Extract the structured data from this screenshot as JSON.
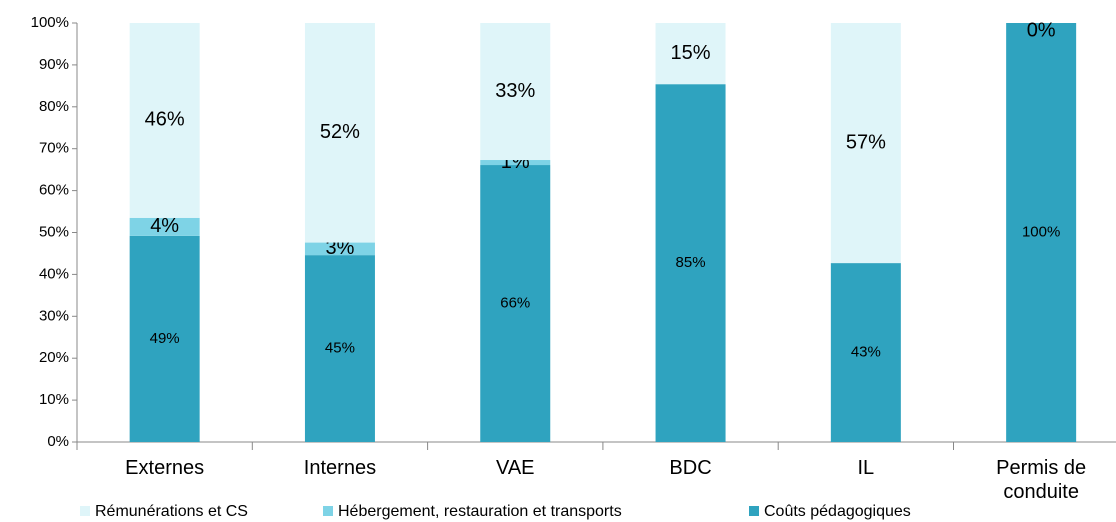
{
  "chart_data": {
    "type": "stacked_bar",
    "categories": [
      "Externes",
      "Internes",
      "VAE",
      "BDC",
      "IL",
      "Permis de conduite"
    ],
    "series": [
      {
        "name": "Coûts pédagogiques",
        "color": "#2fa3bf",
        "values": [
          49.2,
          44.6,
          66.1,
          85.4,
          42.7,
          100
        ],
        "value_labels": [
          "49%",
          "45%",
          "66%",
          "85%",
          "43%",
          "100%"
        ]
      },
      {
        "name": "Hébergement, restauration et transports",
        "color": "#7ed3e6",
        "values": [
          4.3,
          3.0,
          1.2,
          0,
          0,
          0
        ],
        "value_labels": [
          "4%",
          "3%",
          "1%",
          null,
          null,
          null
        ]
      },
      {
        "name": "Rémunérations et CS",
        "color": "#dff5f9",
        "values": [
          46.5,
          52.4,
          32.7,
          14.6,
          57.3,
          0
        ],
        "value_labels": [
          "46%",
          "52%",
          "33%",
          "15%",
          "57%",
          "0%"
        ]
      }
    ],
    "ylim": [
      0,
      100
    ],
    "yticks": [
      {
        "value": 0,
        "label": "0%"
      },
      {
        "value": 10,
        "label": "10%"
      },
      {
        "value": 20,
        "label": "20%"
      },
      {
        "value": 30,
        "label": "30%"
      },
      {
        "value": 40,
        "label": "40%"
      },
      {
        "value": 50,
        "label": "50%"
      },
      {
        "value": 60,
        "label": "60%"
      },
      {
        "value": 70,
        "label": "70%"
      },
      {
        "value": 80,
        "label": "80%"
      },
      {
        "value": 90,
        "label": "90%"
      },
      {
        "value": 100,
        "label": "100%"
      }
    ],
    "legend": "bottom",
    "grid": false
  }
}
